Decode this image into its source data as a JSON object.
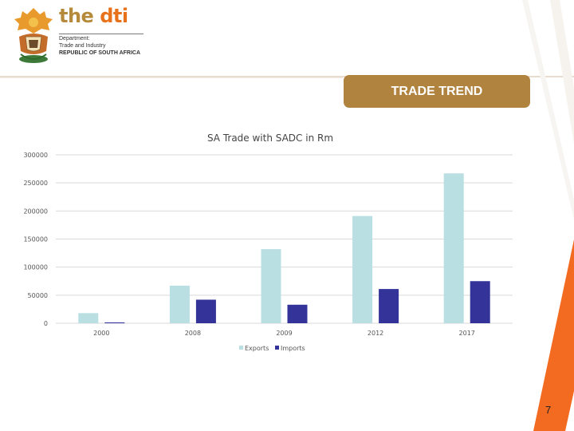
{
  "header": {
    "brand_the": "the",
    "brand_dti": "dti",
    "dept_line1": "Department:",
    "dept_line2": "Trade and Industry",
    "dept_line3": "REPUBLIC OF SOUTH AFRICA"
  },
  "tag": {
    "label": "TRADE TREND"
  },
  "page_number": "7",
  "colors": {
    "exports": "#b9dfe3",
    "imports": "#33339a",
    "tag_bg": "#b0833f",
    "stripe": "#f26b21"
  },
  "chart_data": {
    "type": "bar",
    "title": "SA Trade with SADC  in Rm",
    "xlabel": "",
    "ylabel": "",
    "categories": [
      "2000",
      "2008",
      "2009",
      "2012",
      "2017"
    ],
    "series": [
      {
        "name": "Exports",
        "values": [
          18000,
          67000,
          132000,
          191000,
          267000
        ]
      },
      {
        "name": "Imports",
        "values": [
          1500,
          42000,
          33000,
          61000,
          75000
        ]
      }
    ],
    "ylim": [
      0,
      300000
    ],
    "yticks": [
      "0",
      "50000",
      "100000",
      "150000",
      "200000",
      "250000",
      "300000"
    ],
    "grid": true,
    "legend_position": "bottom"
  }
}
